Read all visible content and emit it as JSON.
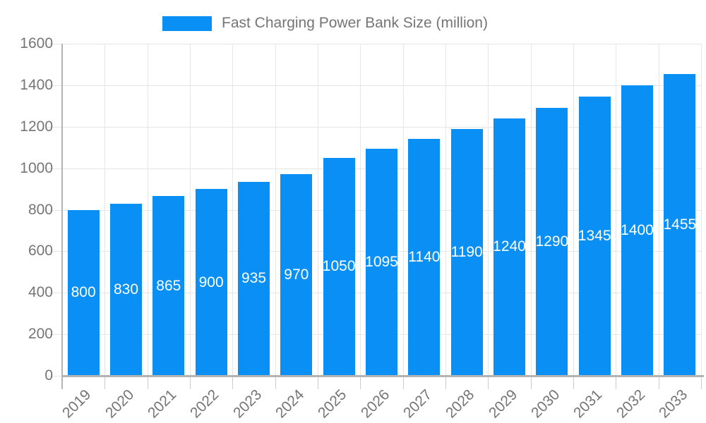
{
  "chart_data": {
    "type": "bar",
    "title": "Fast Charging Power Bank Size (million)",
    "categories": [
      "2019",
      "2020",
      "2021",
      "2022",
      "2023",
      "2024",
      "2025",
      "2026",
      "2027",
      "2028",
      "2029",
      "2030",
      "2031",
      "2032",
      "2033"
    ],
    "values": [
      800,
      830,
      865,
      900,
      935,
      970,
      1050,
      1095,
      1140,
      1190,
      1240,
      1290,
      1345,
      1400,
      1455
    ],
    "xlabel": "",
    "ylabel": "",
    "ylim": [
      0,
      1600
    ],
    "yticks": [
      0,
      200,
      400,
      600,
      800,
      1000,
      1200,
      1400,
      1600
    ],
    "grid": true,
    "legend_position": "top-center",
    "value_labels": "inside-center",
    "colors": {
      "bar": "#0a90f5",
      "value_label": "#ffffff",
      "axis_text": "#757575",
      "grid_line": "#e6e6e6",
      "axis_line": "#b3b3b3",
      "tick_line": "#cccccc"
    }
  }
}
